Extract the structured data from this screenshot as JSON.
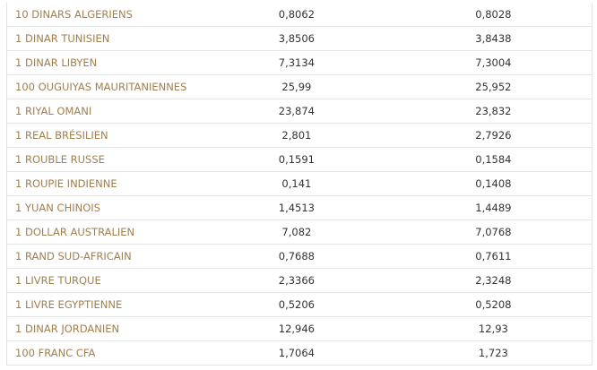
{
  "table": {
    "rows": [
      [
        "10 DINARS ALGERIENS",
        "0,8062",
        "0,8028"
      ],
      [
        "1 DINAR TUNISIEN",
        "3,8506",
        "3,8438"
      ],
      [
        "1 DINAR LIBYEN",
        "7,3134",
        "7,3004"
      ],
      [
        "100 OUGUIYAS MAURITANIENNES",
        "25,99",
        "25,952"
      ],
      [
        "1 RIYAL OMANI",
        "23,874",
        "23,832"
      ],
      [
        "1 REAL BRÉSILIEN",
        "2,801",
        "2,7926"
      ],
      [
        "1 ROUBLE RUSSE",
        "0,1591",
        "0,1584"
      ],
      [
        "1 ROUPIE INDIENNE",
        "0,141",
        "0,1408"
      ],
      [
        "1 YUAN CHINOIS",
        "1,4513",
        "1,4489"
      ],
      [
        "1 DOLLAR AUSTRALIEN",
        "7,082",
        "7,0768"
      ],
      [
        "1 RAND SUD-AFRICAIN",
        "0,7688",
        "0,7611"
      ],
      [
        "1 LIVRE TURQUE",
        "2,3366",
        "2,3248"
      ],
      [
        "1 LIVRE EGYPTIENNE",
        "0,5206",
        "0,5208"
      ],
      [
        "1 DINAR JORDANIEN",
        "12,946",
        "12,93"
      ],
      [
        "100 FRANC CFA",
        "1,7064",
        "1,723"
      ]
    ]
  }
}
